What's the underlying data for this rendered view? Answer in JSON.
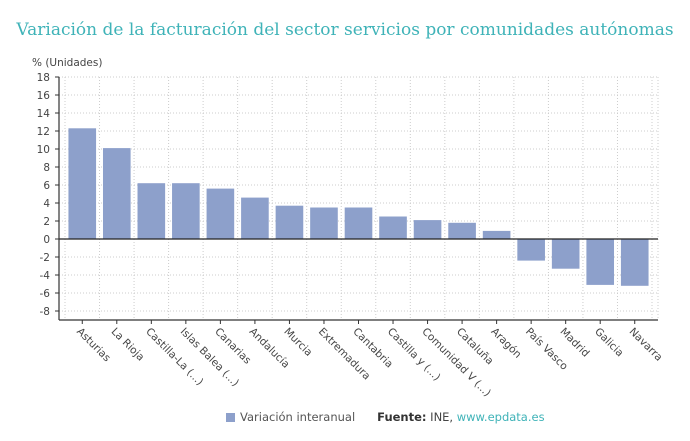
{
  "chart_data": {
    "type": "bar",
    "title": "Variación de la facturación del sector servicios por comunidades autónomas",
    "ylabel": "% (Unidades)",
    "xlabel": "",
    "ylim": [
      -9,
      18
    ],
    "yticks": [
      18,
      16,
      14,
      12,
      10,
      8,
      6,
      4,
      2,
      0,
      -2,
      -4,
      -6,
      -8
    ],
    "grid": true,
    "legend_position": "bottom",
    "categories": [
      "Asturias",
      "La Rioja",
      "Castilla-La (...)",
      "Islas Balea (...)",
      "Canarias",
      "Andalucía",
      "Murcia",
      "Extremadura",
      "Cantabria",
      "Castilla y (...)",
      "Comunidad V (...)",
      "Cataluña",
      "Aragón",
      "País Vasco",
      "Madrid",
      "Galicia",
      "Navarra"
    ],
    "series": [
      {
        "name": "Variación interanual",
        "color": "#8da0cb",
        "values": [
          12.3,
          10.1,
          6.2,
          6.2,
          5.6,
          4.6,
          3.7,
          3.5,
          3.5,
          2.5,
          2.1,
          1.8,
          0.9,
          -2.4,
          -3.3,
          -5.1,
          -5.2
        ]
      }
    ]
  },
  "footer": {
    "legend_label": "Variación interanual",
    "source_label": "Fuente:",
    "source_text": "INE,",
    "source_link": "www.epdata.es"
  }
}
